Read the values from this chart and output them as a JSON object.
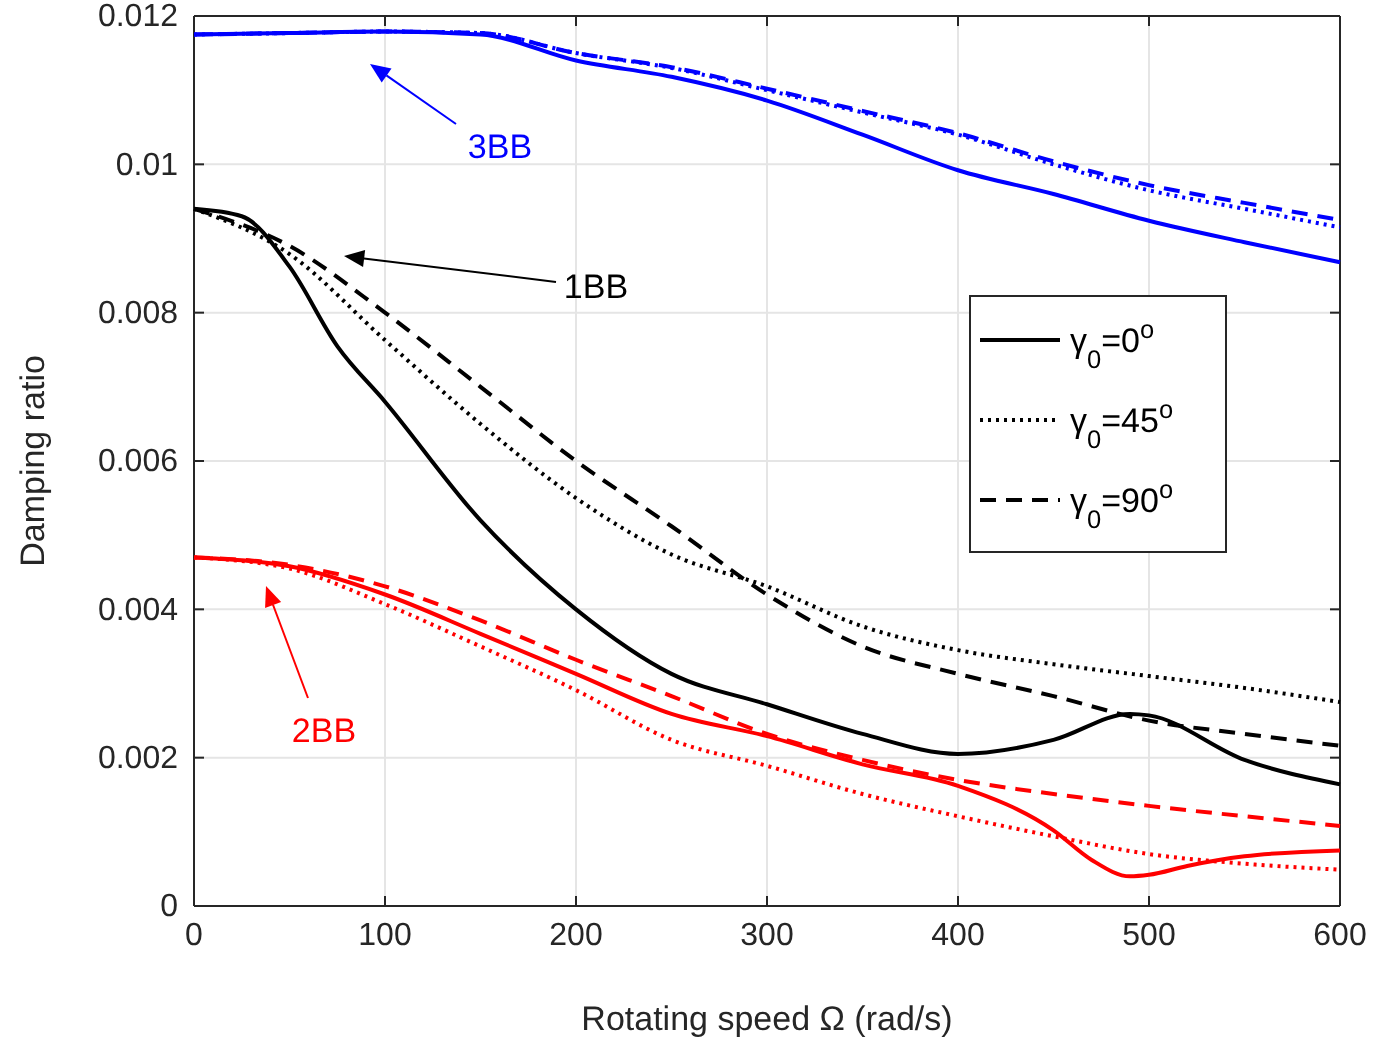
{
  "chart_data": {
    "type": "line",
    "xlabel": "Rotating speed Ω (rad/s)",
    "ylabel": "Damping ratio",
    "x": [
      0,
      50,
      100,
      150,
      200,
      250,
      300,
      350,
      400,
      450,
      500,
      550,
      600
    ],
    "xlim": [
      0,
      600
    ],
    "xticks": [
      0,
      100,
      200,
      300,
      400,
      500,
      600
    ],
    "ylim": [
      0,
      0.012
    ],
    "yticks": [
      0,
      0.002,
      0.004,
      0.006,
      0.008,
      0.01,
      0.012
    ],
    "grid": true,
    "legend": "right",
    "marker": "none",
    "series": [
      {
        "color": "#0000ff",
        "line_style": "solid",
        "values": [
          0.01175,
          0.01177,
          0.01179,
          0.01175,
          0.0114,
          0.01118,
          0.01086,
          0.0104,
          0.00992,
          0.0096,
          0.00924,
          0.00895,
          0.00868
        ]
      },
      {
        "color": "#0000ff",
        "line_style": "dotted",
        "values": [
          0.01175,
          0.01177,
          0.01179,
          0.01177,
          0.0115,
          0.0113,
          0.011,
          0.0107,
          0.0104,
          0.01,
          0.00965,
          0.0094,
          0.00915
        ]
      },
      {
        "color": "#0000ff",
        "line_style": "dashed",
        "values": [
          0.01175,
          0.01177,
          0.01179,
          0.01177,
          0.0115,
          0.01131,
          0.01102,
          0.01072,
          0.01042,
          0.01004,
          0.00972,
          0.00948,
          0.00925
        ]
      },
      {
        "name": "γ$_{0}$=0$^{o}$",
        "color": "#000000",
        "line_style": "solid",
        "x": [
          0,
          25,
          50,
          75,
          100,
          150,
          200,
          250,
          300,
          350,
          400,
          450,
          490,
          500,
          550,
          600
        ],
        "values": [
          0.0094,
          0.0093,
          0.00862,
          0.00755,
          0.0068,
          0.0052,
          0.004,
          0.00313,
          0.00272,
          0.00232,
          0.00205,
          0.00224,
          0.00259,
          0.00257,
          0.00197,
          0.00164
        ]
      },
      {
        "name": "γ$_{0}$=45$^{o}$",
        "color": "#000000",
        "line_style": "dotted",
        "values": [
          0.0094,
          0.00879,
          0.00763,
          0.0065,
          0.0055,
          0.00474,
          0.00431,
          0.00377,
          0.00345,
          0.00326,
          0.0031,
          0.00294,
          0.00275
        ]
      },
      {
        "name": "γ$_{0}$=90$^{o}$",
        "color": "#000000",
        "line_style": "dashed",
        "values": [
          0.0094,
          0.0089,
          0.008,
          0.007,
          0.006,
          0.00512,
          0.0042,
          0.0035,
          0.00313,
          0.00283,
          0.0025,
          0.00232,
          0.00216
        ]
      },
      {
        "color": "#ff0000",
        "line_style": "solid",
        "x": [
          0,
          50,
          100,
          150,
          200,
          250,
          300,
          350,
          400,
          450,
          470,
          490,
          500,
          520,
          550,
          600
        ],
        "values": [
          0.0047,
          0.00458,
          0.0042,
          0.00367,
          0.00313,
          0.00259,
          0.00229,
          0.00191,
          0.00162,
          0.00102,
          0.00062,
          0.0004,
          0.00042,
          0.00054,
          0.00067,
          0.00075
        ]
      },
      {
        "color": "#ff0000",
        "line_style": "dotted",
        "values": [
          0.0047,
          0.00455,
          0.00407,
          0.0035,
          0.00291,
          0.00224,
          0.00189,
          0.00151,
          0.00121,
          0.00094,
          0.0007,
          0.00057,
          0.00049
        ]
      },
      {
        "color": "#ff0000",
        "line_style": "dashed",
        "values": [
          0.0047,
          0.0046,
          0.00431,
          0.00385,
          0.00332,
          0.00283,
          0.00232,
          0.00197,
          0.0017,
          0.00151,
          0.00135,
          0.00121,
          0.00108
        ]
      }
    ],
    "annotations": [
      "3BB",
      "1BB",
      "2BB"
    ]
  }
}
